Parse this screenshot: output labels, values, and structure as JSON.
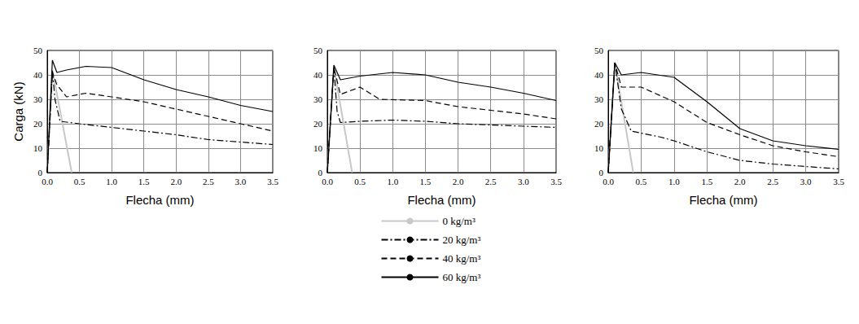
{
  "chart_data": [
    {
      "type": "line",
      "x_label": "Flecha (mm)",
      "y_label": "Carga (kN)",
      "xlim": [
        0,
        3.5
      ],
      "ylim": [
        0,
        50
      ],
      "xticks": [
        {
          "value": 0,
          "label": "0.0"
        },
        {
          "value": 0.5,
          "label": "0.5"
        },
        {
          "value": 1,
          "label": "1.0"
        },
        {
          "value": 1.5,
          "label": "1.5"
        },
        {
          "value": 2,
          "label": "2.0"
        },
        {
          "value": 2.5,
          "label": "2.5"
        },
        {
          "value": 3,
          "label": "3.0"
        },
        {
          "value": 3.5,
          "label": "3.5"
        }
      ],
      "yticks": [
        0,
        10,
        20,
        30,
        40,
        50
      ],
      "grid": true,
      "series": [
        {
          "name": "0 kg/m³",
          "color": "#c8c8c8",
          "line_style": "solid",
          "x": [
            0,
            0.08,
            0.38
          ],
          "values": [
            0,
            42,
            0
          ]
        },
        {
          "name": "20 kg/m³",
          "color": "#000000",
          "line_style": "dashdot",
          "x": [
            0,
            0.08,
            0.12,
            0.2,
            0.5,
            1,
            1.5,
            2,
            2.5,
            3,
            3.5
          ],
          "values": [
            0,
            42,
            30,
            21,
            20,
            18.5,
            17,
            15.5,
            13.5,
            12.5,
            11.5
          ]
        },
        {
          "name": "40 kg/m³",
          "color": "#000000",
          "line_style": "dashed",
          "x": [
            0,
            0.08,
            0.15,
            0.3,
            0.6,
            1,
            1.5,
            2,
            2.5,
            3,
            3.5
          ],
          "values": [
            0,
            41,
            36,
            31,
            32.5,
            31,
            29,
            26,
            23,
            20,
            17
          ]
        },
        {
          "name": "60 kg/m³",
          "color": "#000000",
          "line_style": "solid",
          "x": [
            0,
            0.08,
            0.15,
            0.3,
            0.6,
            1,
            1.5,
            2,
            2.5,
            3,
            3.5
          ],
          "values": [
            0,
            46,
            41,
            42,
            43.5,
            43,
            38,
            34,
            31,
            27.5,
            25
          ]
        }
      ]
    },
    {
      "type": "line",
      "x_label": "Flecha (mm)",
      "xlim": [
        0,
        3.5
      ],
      "ylim": [
        0,
        50
      ],
      "xticks": [
        {
          "value": 0,
          "label": "0.0"
        },
        {
          "value": 0.5,
          "label": "0.5"
        },
        {
          "value": 1,
          "label": "1.0"
        },
        {
          "value": 1.5,
          "label": "1.5"
        },
        {
          "value": 2,
          "label": "2.0"
        },
        {
          "value": 2.5,
          "label": "2.5"
        },
        {
          "value": 3,
          "label": "3.0"
        },
        {
          "value": 3.5,
          "label": "3.5"
        }
      ],
      "yticks": [
        0,
        10,
        20,
        30,
        40,
        50
      ],
      "grid": true,
      "legend": "bottom",
      "series": [
        {
          "name": "0 kg/m³",
          "color": "#c8c8c8",
          "line_style": "solid",
          "x": [
            0,
            0.1,
            0.38
          ],
          "values": [
            0,
            43,
            0
          ]
        },
        {
          "name": "20 kg/m³",
          "color": "#000000",
          "line_style": "dashdot",
          "x": [
            0,
            0.1,
            0.15,
            0.2,
            0.5,
            1,
            1.5,
            2,
            2.5,
            3,
            3.5
          ],
          "values": [
            0,
            43,
            25,
            20.5,
            21,
            21.5,
            21,
            20,
            19.5,
            19,
            18.5
          ]
        },
        {
          "name": "40 kg/m³",
          "color": "#000000",
          "line_style": "dashed",
          "x": [
            0,
            0.1,
            0.2,
            0.5,
            0.8,
            1.5,
            2,
            2.5,
            3,
            3.5
          ],
          "values": [
            0,
            43,
            32,
            35,
            30,
            29.5,
            27,
            25.5,
            24,
            22
          ]
        },
        {
          "name": "60 kg/m³",
          "color": "#000000",
          "line_style": "solid",
          "x": [
            0,
            0.1,
            0.2,
            0.5,
            1,
            1.5,
            2,
            2.5,
            3,
            3.5
          ],
          "values": [
            0,
            44,
            38,
            39.5,
            41,
            40,
            37,
            35,
            32.5,
            29.5
          ]
        }
      ]
    },
    {
      "type": "line",
      "x_label": "Flecha (mm)",
      "xlim": [
        0,
        3.5
      ],
      "ylim": [
        0,
        50
      ],
      "xticks": [
        {
          "value": 0,
          "label": "0.0"
        },
        {
          "value": 0.5,
          "label": "0.5"
        },
        {
          "value": 1,
          "label": "1.0"
        },
        {
          "value": 1.5,
          "label": "1.5"
        },
        {
          "value": 2,
          "label": "2.0"
        },
        {
          "value": 2.5,
          "label": "2.5"
        },
        {
          "value": 3,
          "label": "3.0"
        },
        {
          "value": 3.5,
          "label": "3.5"
        }
      ],
      "yticks": [
        0,
        10,
        20,
        30,
        40,
        50
      ],
      "grid": true,
      "series": [
        {
          "name": "0 kg/m³",
          "color": "#c8c8c8",
          "line_style": "solid",
          "x": [
            0,
            0.1,
            0.38
          ],
          "values": [
            0,
            45,
            0
          ]
        },
        {
          "name": "20 kg/m³",
          "color": "#000000",
          "line_style": "dashdot",
          "x": [
            0,
            0.1,
            0.2,
            0.35,
            0.8,
            1,
            1.5,
            2,
            2.5,
            3,
            3.5
          ],
          "values": [
            0,
            45,
            26,
            17,
            14.5,
            13,
            8.5,
            5,
            3.5,
            2.5,
            1.5
          ]
        },
        {
          "name": "40 kg/m³",
          "color": "#000000",
          "line_style": "dashed",
          "x": [
            0,
            0.1,
            0.2,
            0.5,
            1,
            1.5,
            2,
            2.5,
            3,
            3.5
          ],
          "values": [
            0,
            45,
            35,
            35,
            29,
            20.5,
            15.5,
            11,
            8.5,
            6.5
          ]
        },
        {
          "name": "60 kg/m³",
          "color": "#000000",
          "line_style": "solid",
          "x": [
            0,
            0.1,
            0.2,
            0.5,
            1,
            1.5,
            2,
            2.5,
            3,
            3.5
          ],
          "values": [
            0,
            45,
            40,
            41,
            39,
            29,
            18,
            13,
            11,
            9.5
          ]
        }
      ]
    }
  ]
}
